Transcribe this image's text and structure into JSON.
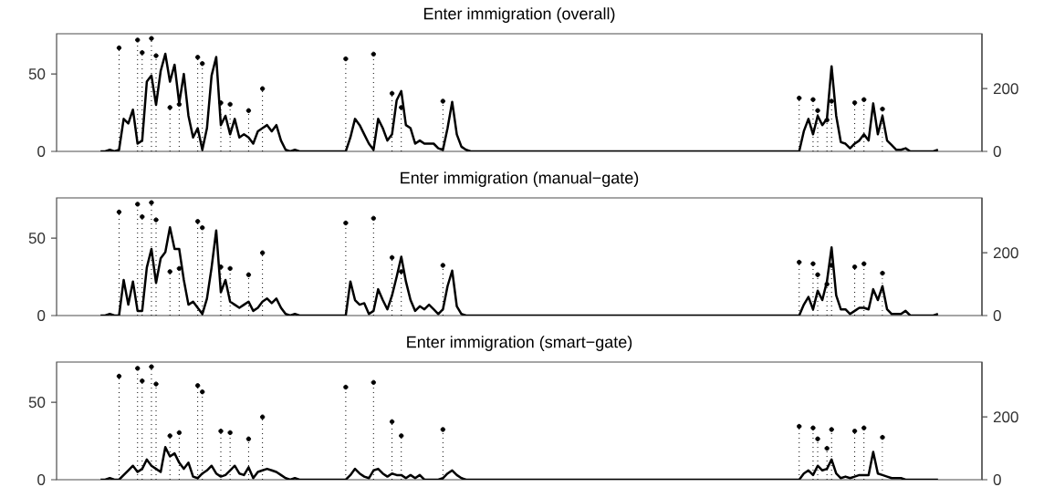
{
  "chart_data": [
    {
      "type": "line",
      "title": "Enter immigration (overall)",
      "categories": [
        null,
        null,
        null,
        null,
        null,
        null,
        null,
        null,
        null,
        null,
        null,
        null,
        null,
        null,
        null,
        null,
        null,
        null,
        null,
        null,
        null,
        null,
        null,
        null,
        null,
        null,
        null,
        null,
        null,
        null,
        null,
        null,
        null,
        null,
        null,
        null,
        null,
        null,
        null,
        null,
        null,
        null,
        null,
        null,
        null,
        null,
        null,
        null,
        null,
        null,
        null,
        null,
        null,
        null,
        null,
        null,
        null,
        null,
        null,
        null,
        null,
        null,
        null,
        null,
        null,
        null,
        null,
        null,
        null,
        null,
        null,
        null,
        null,
        null,
        null,
        null,
        null,
        null,
        null,
        null,
        null,
        null,
        null,
        null,
        null,
        null,
        null,
        null,
        null,
        null,
        null,
        null,
        null,
        null,
        null,
        null,
        null,
        null,
        null,
        null,
        null,
        null,
        null,
        null,
        null,
        null,
        null,
        null,
        null,
        null,
        null,
        null,
        null,
        null,
        null,
        null,
        null,
        null,
        null,
        null,
        null,
        null,
        null,
        null,
        null,
        null,
        null,
        null,
        null,
        null,
        null,
        null,
        null,
        null,
        null,
        null,
        null,
        null,
        null,
        null,
        null,
        null,
        null,
        null,
        null,
        null,
        null,
        null,
        null,
        null,
        null,
        null,
        null,
        null,
        null,
        null,
        null,
        null,
        null,
        null,
        null,
        null,
        null,
        null,
        null,
        null,
        null,
        null,
        null,
        null,
        null,
        null,
        null,
        null,
        null,
        null,
        null,
        null,
        null,
        null,
        null,
        null
      ],
      "series": [
        {
          "color": "#000000",
          "values": [
            0,
            0,
            1,
            0,
            1,
            21,
            18,
            27,
            5,
            7,
            45,
            49,
            30,
            52,
            63,
            45,
            56,
            31,
            50,
            23,
            9,
            15,
            1,
            15,
            49,
            61,
            17,
            23,
            11,
            21,
            9,
            11,
            9,
            5,
            13,
            15,
            17,
            13,
            17,
            7,
            1,
            0,
            1,
            0,
            0,
            0,
            0,
            0,
            0,
            0,
            0,
            0,
            0,
            0,
            9,
            21,
            17,
            11,
            5,
            1,
            21,
            15,
            7,
            11,
            33,
            39,
            17,
            15,
            5,
            7,
            5,
            5,
            5,
            2,
            1,
            15,
            32,
            11,
            3,
            1,
            0,
            0,
            0,
            0,
            0,
            0,
            0,
            0,
            0,
            0,
            0,
            0,
            0,
            0,
            0,
            0,
            0,
            0,
            0,
            0,
            0,
            0,
            0,
            0,
            0,
            0,
            0,
            0,
            0,
            0,
            0,
            0,
            0,
            0,
            0,
            0,
            0,
            0,
            0,
            0,
            0,
            0,
            0,
            0,
            0,
            0,
            0,
            0,
            0,
            0,
            0,
            0,
            0,
            0,
            0,
            0,
            0,
            0,
            0,
            0,
            0,
            0,
            0,
            0,
            0,
            0,
            0,
            0,
            0,
            0,
            0,
            0,
            13,
            21,
            11,
            23,
            17,
            21,
            55,
            23,
            6,
            5,
            2,
            5,
            7,
            11,
            7,
            31,
            11,
            23,
            7,
            4,
            1,
            1,
            2,
            0,
            0,
            0,
            0,
            0,
            0,
            1
          ]
        },
        {
          "type": "lollipop",
          "axis": "y2",
          "color": "#000000",
          "line_style": "dotted",
          "marker": "circle",
          "values": [
            null,
            null,
            null,
            null,
            330,
            null,
            null,
            null,
            355,
            315,
            null,
            360,
            305,
            null,
            null,
            140,
            null,
            150,
            null,
            null,
            null,
            300,
            280,
            null,
            null,
            null,
            155,
            null,
            150,
            null,
            null,
            null,
            130,
            null,
            null,
            200,
            null,
            null,
            null,
            null,
            null,
            null,
            null,
            null,
            null,
            null,
            null,
            null,
            null,
            null,
            null,
            null,
            null,
            295,
            null,
            null,
            null,
            null,
            null,
            310,
            null,
            null,
            null,
            185,
            null,
            140,
            null,
            null,
            null,
            null,
            null,
            null,
            null,
            null,
            160,
            null,
            null,
            null,
            null,
            null,
            null,
            null,
            null,
            null,
            null,
            null,
            null,
            null,
            null,
            null,
            null,
            null,
            null,
            null,
            null,
            null,
            null,
            null,
            null,
            null,
            null,
            null,
            null,
            null,
            null,
            null,
            null,
            null,
            null,
            null,
            null,
            null,
            null,
            null,
            null,
            null,
            null,
            null,
            null,
            null,
            null,
            null,
            null,
            null,
            null,
            null,
            null,
            null,
            null,
            null,
            null,
            null,
            null,
            null,
            null,
            null,
            null,
            null,
            null,
            null,
            null,
            null,
            null,
            null,
            null,
            null,
            null,
            null,
            null,
            null,
            null,
            170,
            null,
            null,
            165,
            130,
            null,
            100,
            160,
            null,
            null,
            null,
            null,
            155,
            null,
            165,
            null,
            null,
            null,
            135,
            null,
            null,
            null,
            null,
            null,
            null,
            null,
            null,
            null,
            null,
            null,
            null
          ]
        }
      ],
      "ylim": [
        0,
        76
      ],
      "yticks": [
        0,
        50
      ],
      "y2lim": [
        0,
        375
      ],
      "y2ticks": [
        0,
        200
      ]
    },
    {
      "type": "line",
      "title": "Enter immigration (manual−gate)",
      "categories": [
        null,
        null,
        null,
        null,
        null,
        null,
        null,
        null,
        null,
        null,
        null,
        null,
        null,
        null,
        null,
        null,
        null,
        null,
        null,
        null,
        null,
        null,
        null,
        null,
        null,
        null,
        null,
        null,
        null,
        null,
        null,
        null,
        null,
        null,
        null,
        null,
        null,
        null,
        null,
        null,
        null,
        null,
        null,
        null,
        null,
        null,
        null,
        null,
        null,
        null,
        null,
        null,
        null,
        null,
        null,
        null,
        null,
        null,
        null,
        null,
        null,
        null,
        null,
        null,
        null,
        null,
        null,
        null,
        null,
        null,
        null,
        null,
        null,
        null,
        null,
        null,
        null,
        null,
        null,
        null,
        null,
        null,
        null,
        null,
        null,
        null,
        null,
        null,
        null,
        null,
        null,
        null,
        null,
        null,
        null,
        null,
        null,
        null,
        null,
        null,
        null,
        null,
        null,
        null,
        null,
        null,
        null,
        null,
        null,
        null,
        null,
        null,
        null,
        null,
        null,
        null,
        null,
        null,
        null,
        null,
        null,
        null,
        null,
        null,
        null,
        null,
        null,
        null,
        null,
        null,
        null,
        null,
        null,
        null,
        null,
        null,
        null,
        null,
        null,
        null,
        null,
        null,
        null,
        null,
        null,
        null,
        null,
        null,
        null,
        null,
        null,
        null,
        null,
        null,
        null,
        null,
        null,
        null,
        null,
        null,
        null,
        null,
        null,
        null,
        null,
        null,
        null,
        null,
        null,
        null,
        null,
        null,
        null,
        null,
        null,
        null,
        null,
        null,
        null,
        null,
        null,
        null
      ],
      "series": [
        {
          "color": "#000000",
          "values": [
            0,
            0,
            1,
            0,
            0,
            23,
            7,
            22,
            3,
            3,
            31,
            43,
            21,
            37,
            41,
            57,
            43,
            43,
            23,
            7,
            9,
            5,
            1,
            11,
            31,
            55,
            15,
            23,
            9,
            7,
            5,
            7,
            9,
            3,
            5,
            9,
            11,
            8,
            11,
            5,
            1,
            0,
            1,
            0,
            0,
            0,
            0,
            0,
            0,
            0,
            0,
            0,
            0,
            0,
            22,
            10,
            7,
            8,
            1,
            3,
            17,
            10,
            4,
            13,
            25,
            38,
            22,
            10,
            3,
            6,
            4,
            7,
            4,
            1,
            4,
            19,
            29,
            6,
            1,
            0,
            0,
            0,
            0,
            0,
            0,
            0,
            0,
            0,
            0,
            0,
            0,
            0,
            0,
            0,
            0,
            0,
            0,
            0,
            0,
            0,
            0,
            0,
            0,
            0,
            0,
            0,
            0,
            0,
            0,
            0,
            0,
            0,
            0,
            0,
            0,
            0,
            0,
            0,
            0,
            0,
            0,
            0,
            0,
            0,
            0,
            0,
            0,
            0,
            0,
            0,
            0,
            0,
            0,
            0,
            0,
            0,
            0,
            0,
            0,
            0,
            0,
            0,
            0,
            0,
            0,
            0,
            0,
            0,
            0,
            0,
            0,
            0,
            7,
            12,
            4,
            16,
            10,
            22,
            44,
            13,
            4,
            4,
            1,
            3,
            5,
            5,
            4,
            17,
            10,
            19,
            4,
            1,
            1,
            1,
            3,
            0,
            0,
            0,
            0,
            0,
            0,
            1
          ]
        },
        {
          "type": "lollipop",
          "axis": "y2",
          "color": "#000000",
          "line_style": "dotted",
          "marker": "circle",
          "values": [
            null,
            null,
            null,
            null,
            330,
            null,
            null,
            null,
            355,
            315,
            null,
            360,
            305,
            null,
            null,
            140,
            null,
            150,
            null,
            null,
            null,
            300,
            280,
            null,
            null,
            null,
            155,
            null,
            150,
            null,
            null,
            null,
            130,
            null,
            null,
            200,
            null,
            null,
            null,
            null,
            null,
            null,
            null,
            null,
            null,
            null,
            null,
            null,
            null,
            null,
            null,
            null,
            null,
            295,
            null,
            null,
            null,
            null,
            null,
            310,
            null,
            null,
            null,
            185,
            null,
            140,
            null,
            null,
            null,
            null,
            null,
            null,
            null,
            null,
            160,
            null,
            null,
            null,
            null,
            null,
            null,
            null,
            null,
            null,
            null,
            null,
            null,
            null,
            null,
            null,
            null,
            null,
            null,
            null,
            null,
            null,
            null,
            null,
            null,
            null,
            null,
            null,
            null,
            null,
            null,
            null,
            null,
            null,
            null,
            null,
            null,
            null,
            null,
            null,
            null,
            null,
            null,
            null,
            null,
            null,
            null,
            null,
            null,
            null,
            null,
            null,
            null,
            null,
            null,
            null,
            null,
            null,
            null,
            null,
            null,
            null,
            null,
            null,
            null,
            null,
            null,
            null,
            null,
            null,
            null,
            null,
            null,
            null,
            null,
            null,
            null,
            170,
            null,
            null,
            165,
            130,
            null,
            100,
            160,
            null,
            null,
            null,
            null,
            155,
            null,
            165,
            null,
            null,
            null,
            135,
            null,
            null,
            null,
            null,
            null,
            null,
            null,
            null,
            null,
            null,
            null,
            null
          ]
        }
      ],
      "ylim": [
        0,
        76
      ],
      "yticks": [
        0,
        50
      ],
      "y2lim": [
        0,
        375
      ],
      "y2ticks": [
        0,
        200
      ]
    },
    {
      "type": "line",
      "title": "Enter immigration (smart−gate)",
      "categories": [
        null,
        null,
        null,
        null,
        null,
        null,
        null,
        null,
        null,
        null,
        null,
        null,
        null,
        null,
        null,
        null,
        null,
        null,
        null,
        null,
        null,
        null,
        null,
        null,
        null,
        null,
        null,
        null,
        null,
        null,
        null,
        null,
        null,
        null,
        null,
        null,
        null,
        null,
        null,
        null,
        null,
        null,
        null,
        null,
        null,
        null,
        null,
        null,
        null,
        null,
        null,
        null,
        null,
        null,
        null,
        null,
        null,
        null,
        null,
        null,
        null,
        null,
        null,
        null,
        null,
        null,
        null,
        null,
        null,
        null,
        null,
        null,
        null,
        null,
        null,
        null,
        null,
        null,
        null,
        null,
        null,
        null,
        null,
        null,
        null,
        null,
        null,
        null,
        null,
        null,
        null,
        null,
        null,
        null,
        null,
        null,
        null,
        null,
        null,
        null,
        null,
        null,
        null,
        null,
        null,
        null,
        null,
        null,
        null,
        null,
        null,
        null,
        null,
        null,
        null,
        null,
        null,
        null,
        null,
        null,
        null,
        null,
        null,
        null,
        null,
        null,
        null,
        null,
        null,
        null,
        null,
        null,
        null,
        null,
        null,
        null,
        null,
        null,
        null,
        null,
        null,
        null,
        null,
        null,
        null,
        null,
        null,
        null,
        null,
        null,
        null,
        null,
        null,
        null,
        null,
        null,
        null,
        null,
        null,
        null,
        null,
        null,
        null,
        null,
        null,
        null,
        null,
        null,
        null,
        null,
        null,
        null,
        null,
        null,
        null,
        null,
        null,
        null,
        null,
        null,
        null,
        null
      ],
      "series": [
        {
          "color": "#000000",
          "values": [
            0,
            0,
            1,
            0,
            0,
            3,
            6,
            9,
            5,
            7,
            13,
            9,
            7,
            5,
            21,
            15,
            17,
            11,
            7,
            11,
            2,
            1,
            4,
            6,
            9,
            4,
            2,
            3,
            6,
            9,
            4,
            3,
            8,
            1,
            5,
            6,
            7,
            6,
            5,
            3,
            1,
            0,
            1,
            0,
            0,
            0,
            0,
            0,
            0,
            0,
            0,
            0,
            0,
            0,
            3,
            7,
            4,
            2,
            1,
            6,
            7,
            4,
            2,
            4,
            3,
            3,
            1,
            3,
            1,
            3,
            0,
            0,
            0,
            0,
            1,
            4,
            6,
            3,
            1,
            0,
            0,
            0,
            0,
            0,
            0,
            0,
            0,
            0,
            0,
            0,
            0,
            0,
            0,
            0,
            0,
            0,
            0,
            0,
            0,
            0,
            0,
            0,
            0,
            0,
            0,
            0,
            0,
            0,
            0,
            0,
            0,
            0,
            0,
            0,
            0,
            0,
            0,
            0,
            0,
            0,
            0,
            0,
            0,
            0,
            0,
            0,
            0,
            0,
            0,
            0,
            0,
            0,
            0,
            0,
            0,
            0,
            0,
            0,
            0,
            0,
            0,
            0,
            0,
            0,
            0,
            0,
            0,
            0,
            0,
            0,
            0,
            0,
            4,
            6,
            3,
            9,
            6,
            7,
            13,
            4,
            1,
            2,
            1,
            2,
            3,
            3,
            3,
            18,
            4,
            3,
            2,
            1,
            1,
            1,
            0,
            0,
            0,
            0,
            0,
            0,
            0,
            0
          ]
        },
        {
          "type": "lollipop",
          "axis": "y2",
          "color": "#000000",
          "line_style": "dotted",
          "marker": "circle",
          "values": [
            null,
            null,
            null,
            null,
            330,
            null,
            null,
            null,
            355,
            315,
            null,
            360,
            305,
            null,
            null,
            140,
            null,
            150,
            null,
            null,
            null,
            300,
            280,
            null,
            null,
            null,
            155,
            null,
            150,
            null,
            null,
            null,
            130,
            null,
            null,
            200,
            null,
            null,
            null,
            null,
            null,
            null,
            null,
            null,
            null,
            null,
            null,
            null,
            null,
            null,
            null,
            null,
            null,
            295,
            null,
            null,
            null,
            null,
            null,
            310,
            null,
            null,
            null,
            185,
            null,
            140,
            null,
            null,
            null,
            null,
            null,
            null,
            null,
            null,
            160,
            null,
            null,
            null,
            null,
            null,
            null,
            null,
            null,
            null,
            null,
            null,
            null,
            null,
            null,
            null,
            null,
            null,
            null,
            null,
            null,
            null,
            null,
            null,
            null,
            null,
            null,
            null,
            null,
            null,
            null,
            null,
            null,
            null,
            null,
            null,
            null,
            null,
            null,
            null,
            null,
            null,
            null,
            null,
            null,
            null,
            null,
            null,
            null,
            null,
            null,
            null,
            null,
            null,
            null,
            null,
            null,
            null,
            null,
            null,
            null,
            null,
            null,
            null,
            null,
            null,
            null,
            null,
            null,
            null,
            null,
            null,
            null,
            null,
            null,
            null,
            null,
            170,
            null,
            null,
            165,
            130,
            null,
            100,
            160,
            null,
            null,
            null,
            null,
            155,
            null,
            165,
            null,
            null,
            null,
            135,
            null,
            null,
            null,
            null,
            null,
            null,
            null,
            null,
            null,
            null,
            null,
            null
          ]
        }
      ],
      "ylim": [
        0,
        76
      ],
      "yticks": [
        0,
        50
      ],
      "y2lim": [
        0,
        375
      ],
      "y2ticks": [
        0,
        200
      ]
    }
  ]
}
